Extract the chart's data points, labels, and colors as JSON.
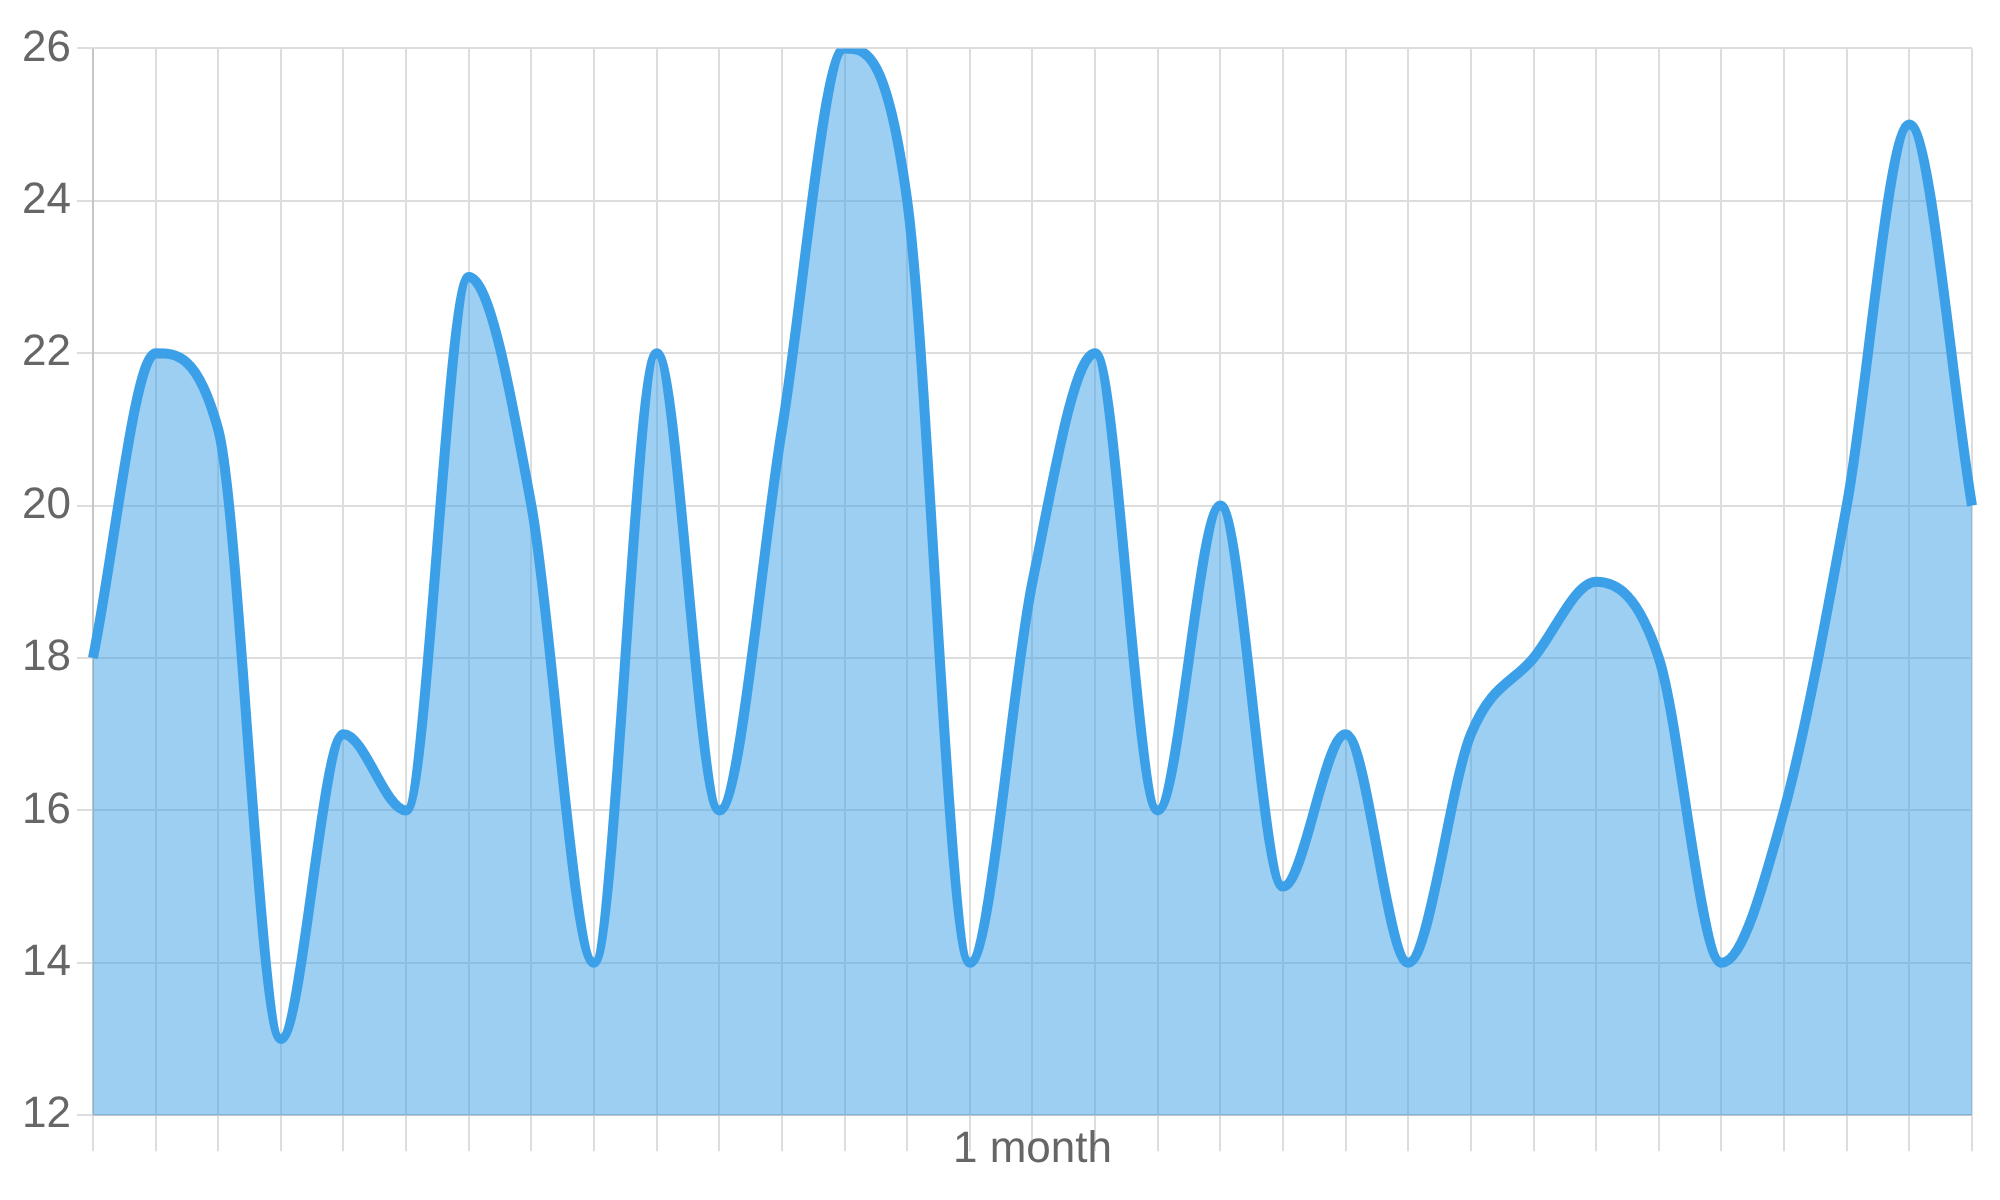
{
  "chart_data": {
    "type": "area",
    "xlabel": "1 month",
    "categories": [
      null,
      null,
      null,
      null,
      null,
      null,
      null,
      null,
      null,
      null,
      null,
      null,
      null,
      null,
      null,
      null,
      null,
      null,
      null,
      null,
      null,
      null,
      null,
      null,
      null,
      null,
      null,
      null,
      null,
      null,
      null
    ],
    "series": [
      {
        "color": "#3ba0e8",
        "values": [
          18,
          22,
          21,
          13,
          17,
          16,
          23,
          20,
          14,
          22,
          16,
          21,
          26,
          24,
          14,
          19,
          22,
          16,
          20,
          15,
          17,
          14,
          17,
          18,
          19,
          18,
          14,
          16,
          20,
          25,
          20
        ]
      }
    ],
    "ylim": [
      12,
      26
    ],
    "yticks": [
      12,
      14,
      16,
      18,
      20,
      22,
      24,
      26
    ],
    "grid": true,
    "legend": false,
    "tick_labels": "y"
  }
}
